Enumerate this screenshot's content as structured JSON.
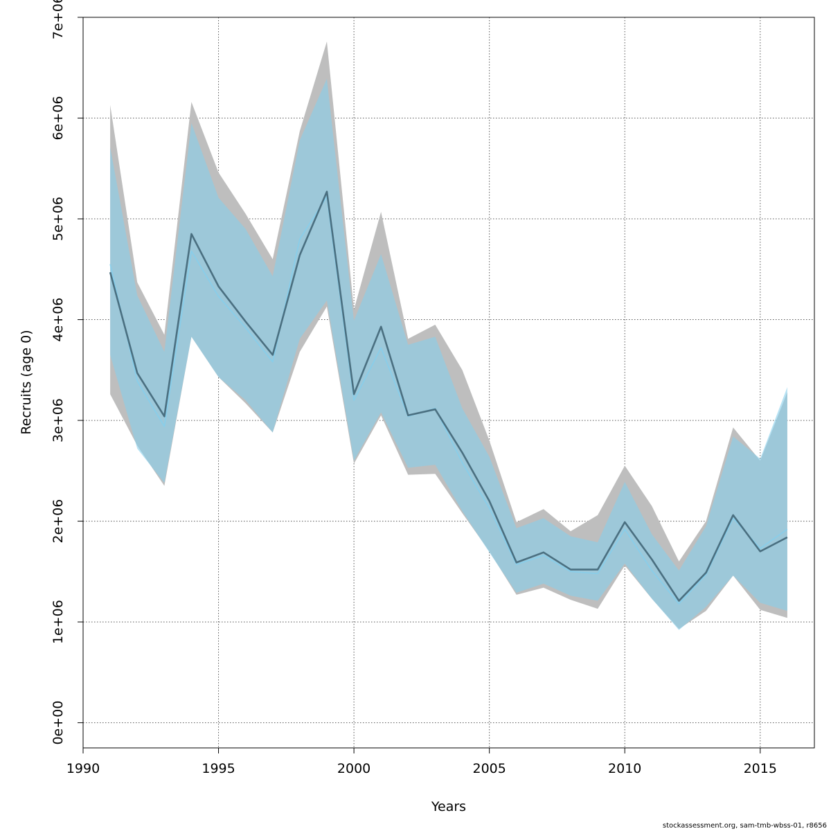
{
  "chart_data": {
    "type": "line",
    "xlabel": "Years",
    "ylabel": "Recruits (age 0)",
    "xlim": [
      1990,
      2017
    ],
    "ylim": [
      -250000,
      7000000
    ],
    "x_ticks": [
      1990,
      1995,
      2000,
      2005,
      2010,
      2015
    ],
    "x_tick_labels": [
      "1990",
      "1995",
      "2000",
      "2005",
      "2010",
      "2015"
    ],
    "y_ticks": [
      0,
      1000000,
      2000000,
      3000000,
      4000000,
      5000000,
      6000000,
      7000000
    ],
    "y_tick_labels": [
      "0e+00",
      "1e+06",
      "2e+06",
      "3e+06",
      "4e+06",
      "5e+06",
      "6e+06",
      "7e+06"
    ],
    "grid": true,
    "grid_style": "dotted",
    "x": [
      1991,
      1992,
      1993,
      1994,
      1995,
      1996,
      1997,
      1998,
      1999,
      2000,
      2001,
      2002,
      2003,
      2004,
      2005,
      2006,
      2007,
      2008,
      2009,
      2010,
      2011,
      2012,
      2013,
      2014,
      2015,
      2016
    ],
    "bands": [
      {
        "color": "#bebebe",
        "upper": [
          6130000,
          4370000,
          3850000,
          6160000,
          5460000,
          5050000,
          4600000,
          5870000,
          6760000,
          4100000,
          5070000,
          3810000,
          3950000,
          3500000,
          2800000,
          1990000,
          2120000,
          1900000,
          2060000,
          2550000,
          2150000,
          1600000,
          2000000,
          2930000,
          2600000,
          3280000
        ],
        "lower": [
          3260000,
          2750000,
          2350000,
          3830000,
          3430000,
          3170000,
          2880000,
          3680000,
          4130000,
          2570000,
          3050000,
          2460000,
          2470000,
          2080000,
          1700000,
          1270000,
          1340000,
          1220000,
          1130000,
          1560000,
          1230000,
          930000,
          1110000,
          1460000,
          1120000,
          1040000
        ]
      },
      {
        "color": "#87ceeb",
        "opacity": 0.6,
        "upper": [
          5710000,
          4240000,
          3680000,
          5950000,
          5210000,
          4900000,
          4430000,
          5780000,
          6390000,
          3990000,
          4650000,
          3750000,
          3830000,
          3120000,
          2640000,
          1930000,
          2030000,
          1850000,
          1790000,
          2390000,
          1870000,
          1510000,
          1950000,
          2840000,
          2620000,
          3330000
        ],
        "lower": [
          3650000,
          2720000,
          2380000,
          3830000,
          3430000,
          3200000,
          2880000,
          3810000,
          4190000,
          2600000,
          3080000,
          2530000,
          2560000,
          2100000,
          1690000,
          1290000,
          1380000,
          1260000,
          1210000,
          1580000,
          1230000,
          920000,
          1150000,
          1460000,
          1190000,
          1110000
        ]
      }
    ],
    "series": [
      {
        "color": "#87ceeb",
        "values": [
          4550000,
          3390000,
          2940000,
          4680000,
          4230000,
          3920000,
          3580000,
          4800000,
          5220000,
          3200000,
          3720000,
          3040000,
          3120000,
          2580000,
          2130000,
          1570000,
          1660000,
          1500000,
          1480000,
          1920000,
          1510000,
          1180000,
          1470000,
          2030000,
          1730000,
          1920000
        ]
      },
      {
        "color": "#4a6f80",
        "values": [
          4470000,
          3470000,
          3040000,
          4850000,
          4330000,
          3980000,
          3650000,
          4640000,
          5270000,
          3260000,
          3930000,
          3050000,
          3110000,
          2680000,
          2200000,
          1590000,
          1690000,
          1520000,
          1520000,
          1990000,
          1620000,
          1210000,
          1490000,
          2060000,
          1700000,
          1840000
        ]
      }
    ]
  },
  "footer": {
    "text": "stockassessment.org, sam-tmb-wbss-01, r8656"
  }
}
